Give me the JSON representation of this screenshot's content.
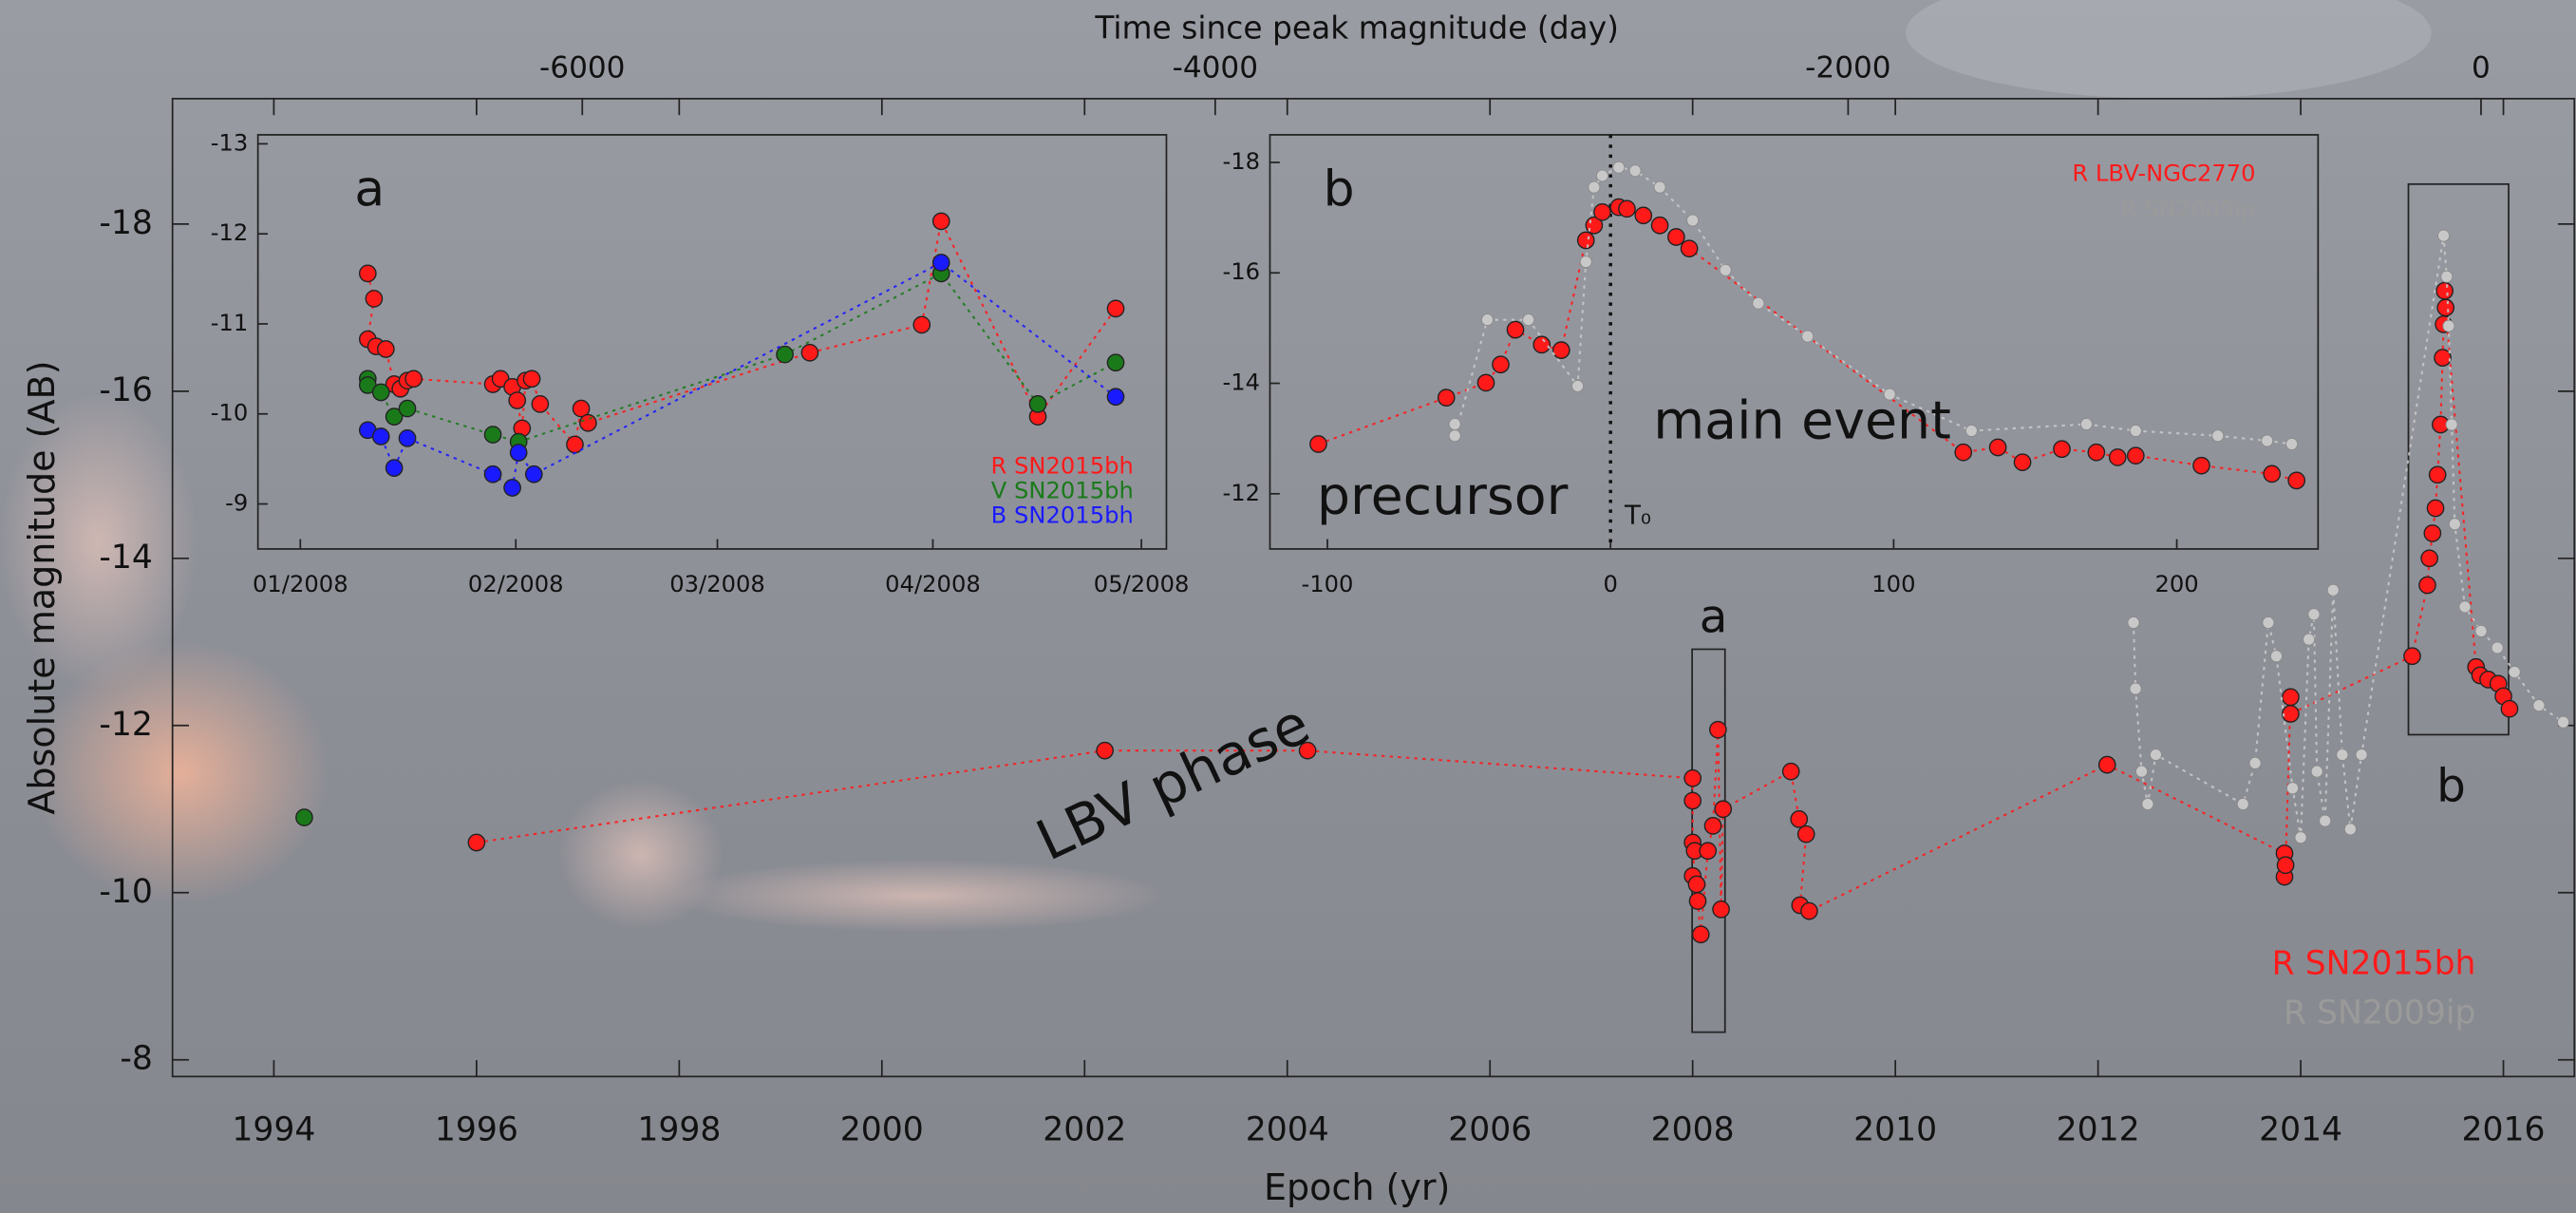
{
  "chart_data": [
    {
      "type": "scatter",
      "line_style": "dotted",
      "grid": false,
      "legend": "lower right",
      "xlabel": "Epoch (yr)",
      "ylabel": "Absolute magnitude (AB)",
      "x2label": "Time since peak magnitude (day)",
      "xlim": [
        1993,
        2016.7
      ],
      "xticks": [
        1994,
        1996,
        1998,
        2000,
        2002,
        2004,
        2006,
        2008,
        2010,
        2012,
        2014,
        2016
      ],
      "x2lim": [
        -7295,
        295
      ],
      "x2ticks": [
        -6000,
        -4000,
        -2000,
        0
      ],
      "ylim": [
        -7.8,
        -19.5
      ],
      "yticks": [
        -18,
        -16,
        -14,
        -12,
        -10,
        -8
      ],
      "annotations": [
        "LBV phase",
        "a",
        "b"
      ],
      "series": [
        {
          "name": "R SN2015bh",
          "color": "#ff1a1a",
          "in_legend": true,
          "x": [
            1996.0,
            2002.2,
            2004.2,
            2008.0,
            2008.0,
            2008.0,
            2008.02,
            2008.0,
            2008.04,
            2008.05,
            2008.08,
            2008.15,
            2008.2,
            2008.25,
            2008.28,
            2008.3,
            2008.97,
            2009.05,
            2009.12,
            2009.06,
            2009.15,
            2012.09,
            2013.84,
            2013.84,
            2013.85,
            2013.9,
            2013.9,
            2015.1,
            2015.25,
            2015.27,
            2015.3,
            2015.33,
            2015.35,
            2015.38,
            2015.4,
            2015.41,
            2015.42,
            2015.43,
            2015.73,
            2015.77,
            2015.85,
            2015.95,
            2016.0,
            2016.06
          ],
          "values": [
            -10.6,
            -11.7,
            -11.7,
            -11.37,
            -11.1,
            -10.6,
            -10.5,
            -10.2,
            -10.1,
            -9.9,
            -9.5,
            -10.5,
            -10.8,
            -11.95,
            -9.8,
            -11.0,
            -11.45,
            -10.88,
            -10.7,
            -9.85,
            -9.78,
            -11.53,
            -10.47,
            -10.19,
            -10.33,
            -12.34,
            -12.14,
            -12.83,
            -13.68,
            -14.0,
            -14.3,
            -14.6,
            -15.0,
            -15.6,
            -16.4,
            -16.8,
            -17.2,
            -17.0,
            -12.7,
            -12.6,
            -12.55,
            -12.5,
            -12.35,
            -12.2
          ]
        },
        {
          "name": "V SN2015bh",
          "color": "#1a7a1a",
          "in_legend": false,
          "x": [
            1994.3
          ],
          "values": [
            -10.9
          ]
        },
        {
          "name": "R SN2009ip",
          "color": "#c8c8c8",
          "in_legend": true,
          "x": [
            2012.35,
            2012.37,
            2012.43,
            2012.49,
            2012.57,
            2013.43,
            2013.55,
            2013.68,
            2013.76,
            2013.92,
            2014.0,
            2014.08,
            2014.13,
            2014.16,
            2014.24,
            2014.32,
            2014.41,
            2014.49,
            2014.6,
            2015.41,
            2015.44,
            2015.46,
            2015.49,
            2015.52,
            2015.62,
            2015.78,
            2015.94,
            2016.11,
            2016.35,
            2016.59
          ],
          "values": [
            -13.23,
            -12.44,
            -11.45,
            -11.06,
            -11.65,
            -11.06,
            -11.55,
            -13.23,
            -12.83,
            -11.25,
            -10.66,
            -13.03,
            -13.33,
            -11.45,
            -10.86,
            -13.62,
            -11.65,
            -10.76,
            -11.65,
            -17.86,
            -17.37,
            -16.78,
            -15.6,
            -14.41,
            -13.42,
            -13.13,
            -12.93,
            -12.64,
            -12.24,
            -12.04
          ]
        }
      ]
    },
    {
      "type": "scatter",
      "line_style": "dotted",
      "grid": false,
      "legend": "lower right",
      "xlim": [
        -6.1,
        124.6
      ],
      "xticks": [
        {
          "value": 0,
          "label": "01/2008"
        },
        {
          "value": 31,
          "label": "02/2008"
        },
        {
          "value": 60,
          "label": "03/2008"
        },
        {
          "value": 91,
          "label": "04/2008"
        },
        {
          "value": 121,
          "label": "05/2008"
        }
      ],
      "ylim": [
        -8.5,
        -13.1
      ],
      "yticks": [
        -13,
        -12,
        -11,
        -10,
        -9
      ],
      "annotations": [
        "a"
      ],
      "series": [
        {
          "name": "R SN2015bh",
          "color": "#ff1a1a",
          "in_legend": true,
          "x": [
            9.7,
            10.6,
            9.7,
            10.9,
            12.3,
            13.5,
            14.4,
            15.4,
            16.3,
            27.7,
            28.8,
            30.5,
            31.2,
            31.9,
            32.4,
            33.3,
            34.5,
            39.5,
            40.4,
            41.4,
            73.3,
            89.4,
            92.2,
            106.1,
            117.3
          ],
          "values": [
            -11.56,
            -11.28,
            -10.83,
            -10.75,
            -10.72,
            -10.33,
            -10.28,
            -10.37,
            -10.39,
            -10.33,
            -10.39,
            -10.3,
            -10.15,
            -9.84,
            -10.37,
            -10.39,
            -10.11,
            -9.66,
            -10.06,
            -9.9,
            -10.68,
            -10.99,
            -12.14,
            -9.97,
            -11.17
          ]
        },
        {
          "name": "V SN2015bh",
          "color": "#1a7a1a",
          "in_legend": true,
          "x": [
            9.7,
            9.7,
            11.6,
            13.5,
            15.4,
            27.7,
            31.4,
            69.7,
            92.2,
            106.1,
            117.3
          ],
          "values": [
            -10.39,
            -10.32,
            -10.24,
            -9.97,
            -10.06,
            -9.77,
            -9.69,
            -10.66,
            -11.56,
            -10.11,
            -10.57
          ]
        },
        {
          "name": "B SN2015bh",
          "color": "#1a1aff",
          "in_legend": true,
          "x": [
            9.7,
            11.6,
            13.5,
            15.4,
            27.7,
            30.5,
            31.4,
            33.6,
            92.2,
            117.3
          ],
          "values": [
            -9.82,
            -9.75,
            -9.4,
            -9.73,
            -9.33,
            -9.18,
            -9.57,
            -9.33,
            -11.68,
            -10.19
          ]
        }
      ]
    },
    {
      "type": "scatter",
      "line_style": "dotted",
      "grid": false,
      "legend": "upper right",
      "xlim": [
        -120.3,
        249.9
      ],
      "xticks": [
        -100,
        0,
        100,
        200
      ],
      "ylim": [
        -11,
        -18.5
      ],
      "yticks": [
        -18,
        -16,
        -14,
        -12
      ],
      "vline": 0,
      "annotations": [
        "b",
        "precursor",
        "main event",
        "T₀"
      ],
      "series": [
        {
          "name": "R LBV-NGC2770",
          "color": "#ff1a1a",
          "in_legend": true,
          "x": [
            -103.2,
            -58,
            -44,
            -38.8,
            -33.6,
            -24.3,
            -17.4,
            -8.7,
            -5.8,
            -2.9,
            2.9,
            5.8,
            11.6,
            17.4,
            23.2,
            27.8,
            124.6,
            136.8,
            145.5,
            159.4,
            171.6,
            179.1,
            185.5,
            208.7,
            233.6,
            242.3
          ],
          "values": [
            -12.9,
            -13.74,
            -14.01,
            -14.34,
            -14.97,
            -14.7,
            -14.6,
            -16.59,
            -16.86,
            -17.1,
            -17.19,
            -17.16,
            -17.04,
            -16.86,
            -16.65,
            -16.44,
            -12.75,
            -12.84,
            -12.57,
            -12.81,
            -12.75,
            -12.66,
            -12.69,
            -12.51,
            -12.36,
            -12.24
          ]
        },
        {
          "name": "R SN2009ip",
          "color": "#c8c8c8",
          "in_legend": true,
          "x": [
            -55,
            -55,
            -43.5,
            -29,
            -11.6,
            -8.7,
            -5.8,
            -2.9,
            2.9,
            8.7,
            17.4,
            29,
            40.6,
            52.2,
            69.6,
            98.6,
            127.5,
            168.1,
            185.5,
            214.5,
            231.9,
            240.6
          ],
          "values": [
            -13.26,
            -13.05,
            -15.15,
            -15.15,
            -13.95,
            -16.2,
            -17.55,
            -17.76,
            -17.91,
            -17.85,
            -17.55,
            -16.95,
            -16.05,
            -15.45,
            -14.85,
            -13.8,
            -13.14,
            -13.26,
            -13.14,
            -13.05,
            -12.96,
            -12.9
          ]
        }
      ]
    }
  ]
}
